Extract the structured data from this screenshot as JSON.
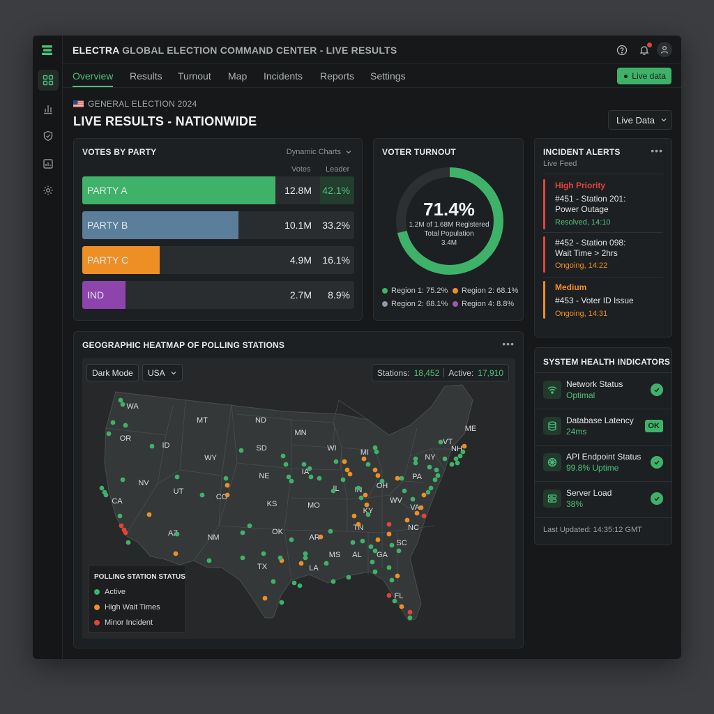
{
  "app": {
    "title_main": "ELECTRA",
    "title_rest": " GLOBAL ELECTION COMMAND CENTER - ",
    "title_live": "LIVE RESULTS"
  },
  "nav": {
    "tabs": [
      "Overview",
      "Results",
      "Turnout",
      "Map",
      "Incidents",
      "Reports",
      "Settings"
    ],
    "live_label": "Live data"
  },
  "header": {
    "subtitle": "GENERAL ELECTION 2024",
    "title": "LIVE RESULTS - NATIONWIDE",
    "selector": "Live Data"
  },
  "votes": {
    "title": "VOTES BY PARTY",
    "control": "Dynamic Charts",
    "col_votes": "Votes",
    "col_leader": "Leader",
    "parties": [
      {
        "name": "PARTY A",
        "votes": "12.8M",
        "pct": "42.1%",
        "share": 0.71,
        "color": "#3fb26a"
      },
      {
        "name": "PARTY B",
        "votes": "10.1M",
        "pct": "33.2%",
        "share": 0.575,
        "color": "#5b7e9b"
      },
      {
        "name": "PARTY C",
        "votes": "4.9M",
        "pct": "16.1%",
        "share": 0.285,
        "color": "#ee8f26"
      },
      {
        "name": "IND",
        "votes": "2.7M",
        "pct": "8.9%",
        "share": 0.158,
        "color": "#8e44ad"
      }
    ]
  },
  "turnout": {
    "title": "VOTER TURNOUT",
    "value": "71.4%",
    "fraction": 0.714,
    "line1": "1.2M of 1.68M Registered",
    "line2": "Total Population",
    "line3": "3.4M",
    "legend": [
      {
        "label": "Region 1: 75.2%",
        "color": "#3fb26a"
      },
      {
        "label": "Region 2: 68.1%",
        "color": "#ee8f26"
      },
      {
        "label": "Region 2: 68.1%",
        "color": "#8a9aa8"
      },
      {
        "label": "Region 4: 8.8%",
        "color": "#9b59b6"
      }
    ]
  },
  "incidents": {
    "title": "INCIDENT ALERTS",
    "subtitle": "Live Feed",
    "items": [
      {
        "priority": "High Priority",
        "line1": "#451 - Station 201:",
        "line2": "Power Outage",
        "status": "Resolved, 14:10"
      },
      {
        "priority": "",
        "line1": "#452 - Station 098:",
        "line2": "Wait Time > 2hrs",
        "status": "Ongoing, 14:22"
      },
      {
        "priority": "Medium",
        "line1": "#453 - Voter ID Issue",
        "line2": "",
        "status": "Ongoing, 14:31"
      }
    ]
  },
  "health": {
    "title": "SYSTEM HEALTH INDICATORS",
    "items": [
      {
        "name": "Network Status",
        "value": "Optimal",
        "badge": ""
      },
      {
        "name": "Database Latency",
        "value": "24ms",
        "badge": "OK"
      },
      {
        "name": "API Endpoint Status",
        "value": "99.8% Uptime",
        "badge": ""
      },
      {
        "name": "Server Load",
        "value": "38%",
        "badge": ""
      }
    ],
    "updated": "Last Updated: 14:35:12 GMT"
  },
  "map": {
    "title": "GEOGRAPHIC HEATMAP OF POLLING STATIONS",
    "mode": "Dark Mode",
    "region": "USA",
    "stations_label": "Stations:",
    "stations_value": "18,452",
    "active_label": "Active:",
    "active_value": "17,910",
    "legend_title": "POLLING STATION STATUS",
    "legend": [
      {
        "label": "Active",
        "color": "#3fb26a"
      },
      {
        "label": "High Wait Times",
        "color": "#ee8f26"
      },
      {
        "label": "Minor Incident",
        "color": "#e0453d"
      }
    ],
    "states": [
      "WA",
      "OR",
      "CA",
      "ID",
      "NV",
      "MT",
      "WY",
      "UT",
      "AZ",
      "CO",
      "NM",
      "ND",
      "SD",
      "NE",
      "KS",
      "OK",
      "TX",
      "MN",
      "IA",
      "MO",
      "AR",
      "LA",
      "WI",
      "IL",
      "MI",
      "IN",
      "OH",
      "KY",
      "TN",
      "MS",
      "AL",
      "GA",
      "FL",
      "SC",
      "NC",
      "VA",
      "WV",
      "PA",
      "NY",
      "VT",
      "NH",
      "ME"
    ]
  },
  "colors": {
    "accent": "#4cc27b",
    "danger": "#e0453d",
    "warning": "#ee8f26"
  }
}
